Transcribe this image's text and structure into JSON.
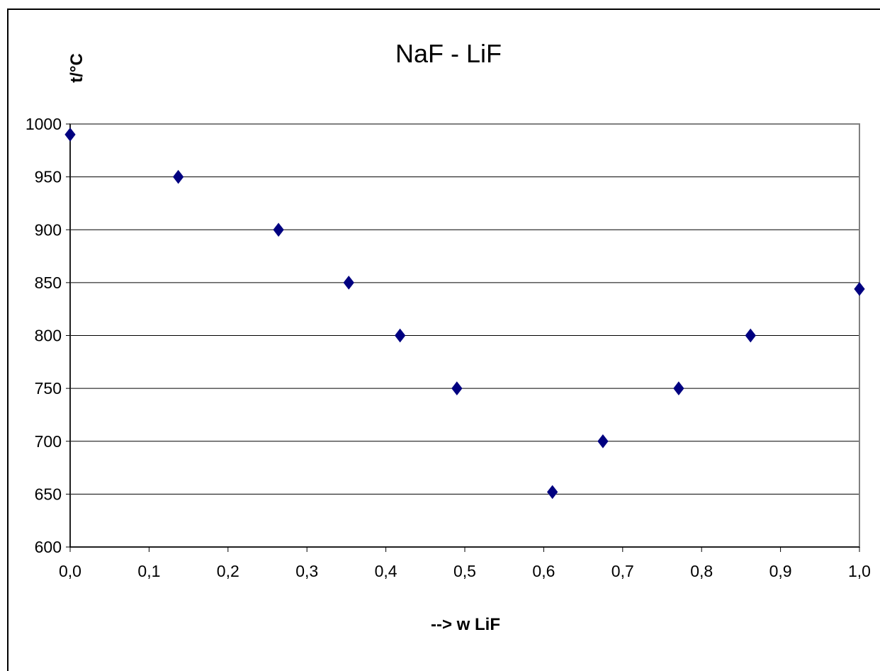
{
  "chart_data": {
    "type": "scatter",
    "title": "NaF - LiF",
    "xlabel": "--> w LiF",
    "ylabel": "t/°C",
    "xlim": [
      0.0,
      1.0
    ],
    "ylim": [
      600,
      1000
    ],
    "x_ticks": [
      "0,0",
      "0,1",
      "0,2",
      "0,3",
      "0,4",
      "0,5",
      "0,6",
      "0,7",
      "0,8",
      "0,9",
      "1,0"
    ],
    "y_ticks": [
      "600",
      "650",
      "700",
      "750",
      "800",
      "850",
      "900",
      "950",
      "1000"
    ],
    "grid": "horizontal",
    "legend": "none",
    "marker": "diamond",
    "series": [
      {
        "x": [
          0.0,
          0.137,
          0.264,
          0.353,
          0.418,
          0.49,
          0.611,
          0.675,
          0.771,
          0.862,
          1.0
        ],
        "y": [
          990,
          950,
          900,
          850,
          800,
          750,
          652,
          700,
          750,
          800,
          844
        ],
        "color": "#000080"
      }
    ]
  }
}
